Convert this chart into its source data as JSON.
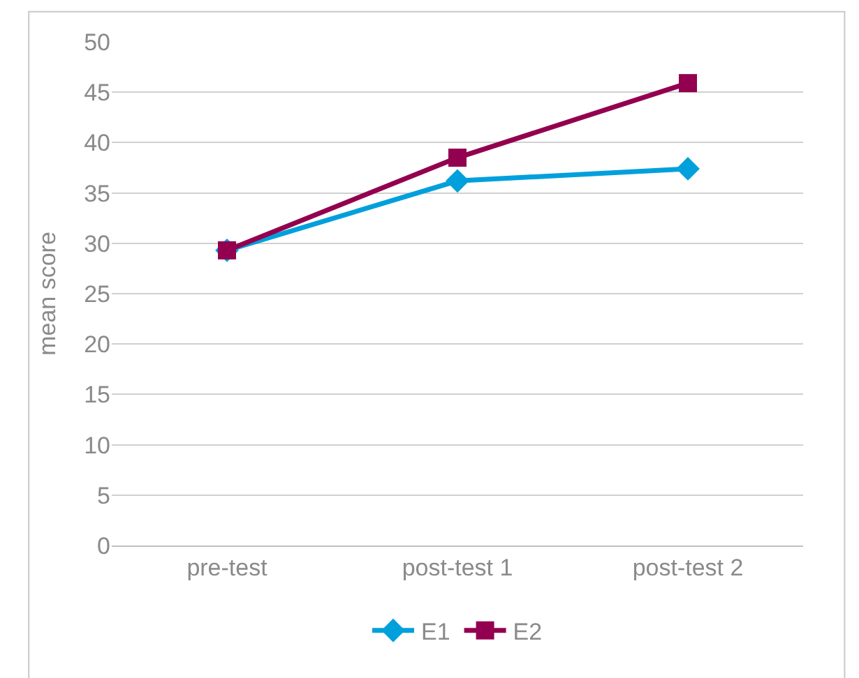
{
  "chart_data": {
    "type": "line",
    "ylabel": "mean score",
    "categories": [
      "pre-test",
      "post-test 1",
      "post-test 2"
    ],
    "series": [
      {
        "name": "E1",
        "color": "#00a0dc",
        "values": [
          29.3,
          36.2,
          37.4
        ],
        "marker": "diamond"
      },
      {
        "name": "E2",
        "color": "#93004f",
        "values": [
          29.3,
          38.5,
          45.9
        ],
        "marker": "square"
      }
    ],
    "ylim": [
      0,
      50
    ],
    "yticks": [
      0,
      5,
      10,
      15,
      20,
      25,
      30,
      35,
      40,
      45,
      50
    ],
    "grid": "y",
    "legend": "bottom",
    "line_style": "solid"
  }
}
